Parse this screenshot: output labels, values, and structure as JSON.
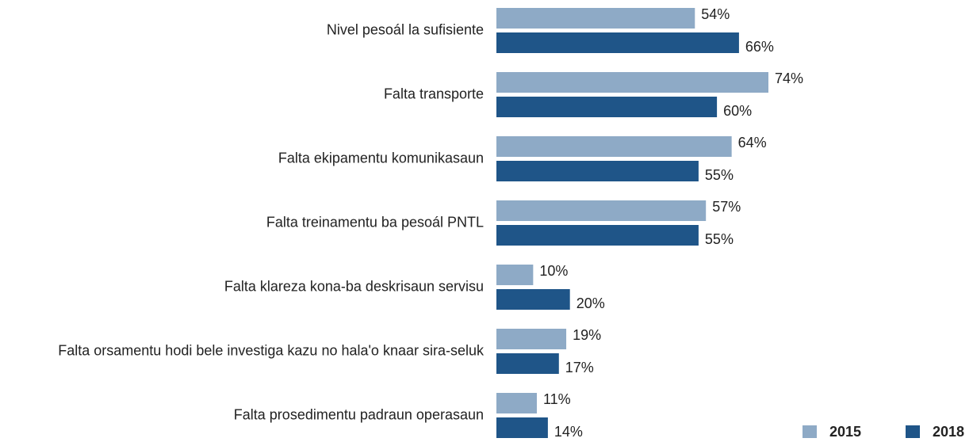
{
  "chart_data": {
    "type": "bar",
    "orientation": "horizontal",
    "categories": [
      "Nivel pesoál la sufisiente",
      "Falta transporte",
      "Falta ekipamentu komunikasaun",
      "Falta treinamentu ba pesoál PNTL",
      "Falta klareza kona-ba deskrisaun servisu",
      "Falta orsamentu hodi bele investiga kazu no hala'o knaar sira-seluk",
      "Falta prosedimentu padraun operasaun"
    ],
    "series": [
      {
        "name": "2015",
        "color": "#8eaac6",
        "values": [
          54,
          74,
          64,
          57,
          10,
          19,
          11
        ],
        "value_labels": [
          "54%",
          "74%",
          "64%",
          "57%",
          "10%",
          "19%",
          "11%"
        ]
      },
      {
        "name": "2018",
        "color": "#1f5588",
        "values": [
          66,
          60,
          55,
          55,
          20,
          17,
          14
        ],
        "value_labels": [
          "66%",
          "60%",
          "55%",
          "55%",
          "20%",
          "17%",
          "14%"
        ]
      }
    ],
    "legend": "bottom-right"
  }
}
